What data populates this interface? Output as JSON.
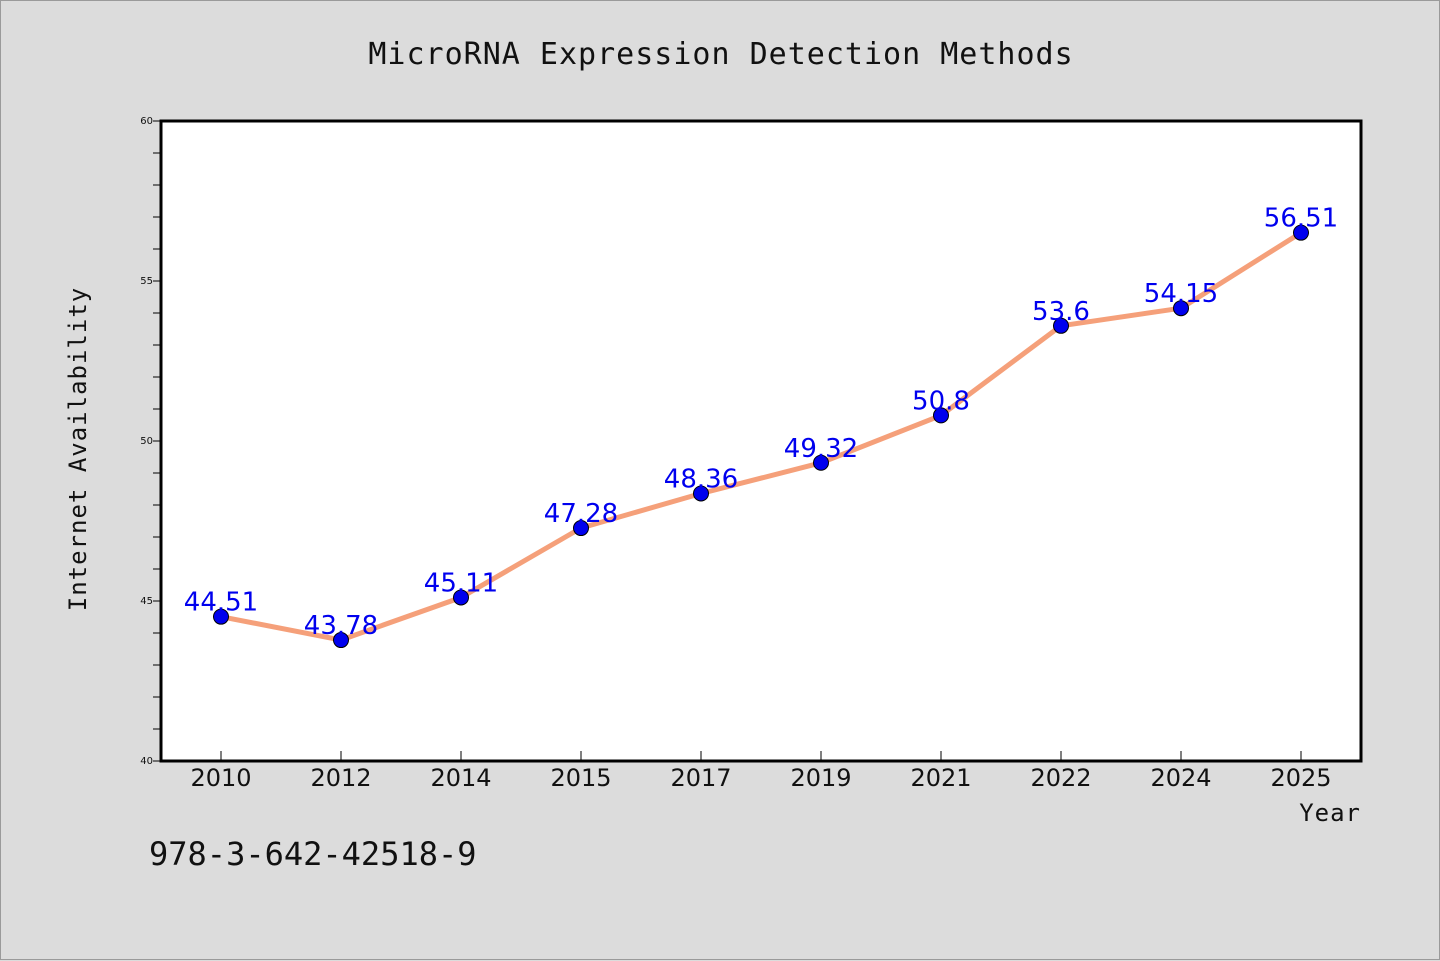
{
  "chart_data": {
    "type": "line",
    "title": "MicroRNA Expression Detection Methods",
    "xlabel": "Year",
    "ylabel": "Internet Availability",
    "categories": [
      "2010",
      "2012",
      "2014",
      "2015",
      "2017",
      "2019",
      "2021",
      "2022",
      "2024",
      "2025"
    ],
    "series": [
      {
        "values": [
          44.51,
          43.78,
          45.11,
          47.28,
          48.36,
          49.32,
          50.8,
          53.6,
          54.15,
          56.51
        ],
        "labels": [
          "44.51",
          "43.78",
          "45.11",
          "47.28",
          "48.36",
          "49.32",
          "50.8",
          "53.6",
          "54.15",
          "56.51"
        ],
        "line_color": "#f5a07a",
        "marker_color": "#0000ee",
        "label_color": "#0000ee"
      }
    ],
    "ylim": [
      40,
      60
    ],
    "yticks": [
      "40",
      "45",
      "50",
      "55",
      "60"
    ],
    "grid": false,
    "legend": "none"
  },
  "annotation": "978-3-642-42518-9",
  "colors": {
    "background": "#dcdcdc",
    "plot_background": "#ffffff",
    "axis": "#000000"
  }
}
